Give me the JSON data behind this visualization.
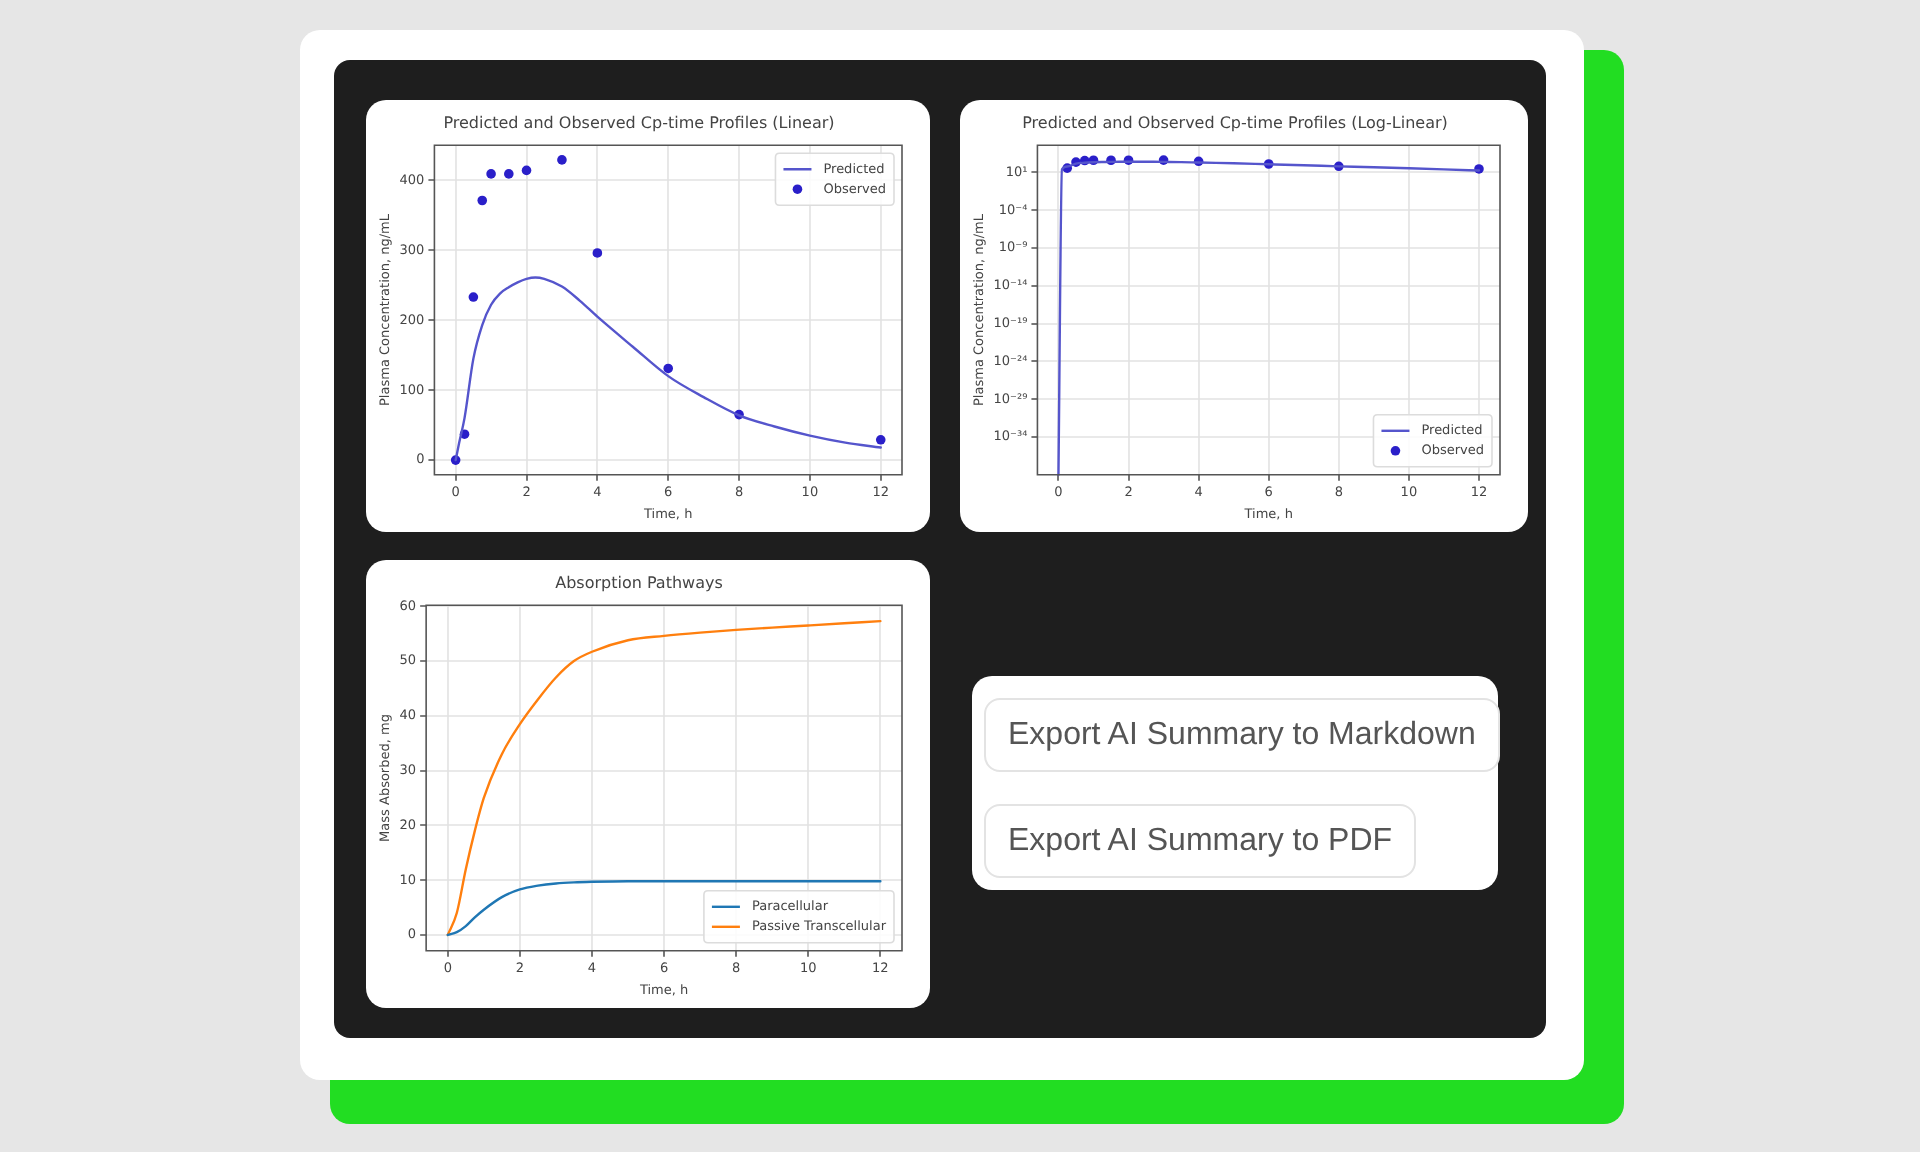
{
  "chart_data": [
    {
      "type": "line",
      "title": "Predicted and Observed Cp-time Profiles (Linear)",
      "xlabel": "Time, h",
      "ylabel": "Plasma Concentration, ng/mL",
      "series": [
        {
          "name": "Predicted",
          "type": "line",
          "color": "#5555cc",
          "x": [
            0,
            0.1,
            0.25,
            0.5,
            0.75,
            1,
            1.25,
            1.5,
            1.75,
            2,
            2.25,
            2.5,
            3,
            3.5,
            4,
            5,
            6,
            7,
            8,
            9,
            10,
            11,
            12
          ],
          "values": [
            0,
            25,
            60,
            145,
            193,
            222,
            238,
            247,
            254,
            259,
            261,
            259,
            248,
            228,
            205,
            162,
            120,
            90,
            64,
            48,
            35,
            25,
            18
          ]
        },
        {
          "name": "Observed",
          "type": "scatter",
          "color": "#2a1fc9",
          "marker": "circle",
          "x": [
            0,
            0.25,
            0.5,
            0.75,
            1,
            1.5,
            2,
            3,
            4,
            6,
            8,
            12
          ],
          "values": [
            0,
            37,
            233,
            371,
            409,
            409,
            414,
            429,
            296,
            131,
            65,
            29
          ]
        }
      ],
      "xlim": [
        -0.6,
        12.6
      ],
      "ylim": [
        -21,
        450
      ],
      "xticks": [
        0,
        2,
        4,
        6,
        8,
        10,
        12
      ],
      "yticks": [
        0,
        100,
        200,
        300,
        400
      ],
      "grid": true,
      "legend": "top right"
    },
    {
      "type": "line",
      "title": "Predicted and Observed Cp-time Profiles (Log-Linear)",
      "xlabel": "Time, h",
      "ylabel": "Plasma Concentration, ng/mL",
      "log": true,
      "series": [
        {
          "name": "Predicted",
          "type": "line",
          "color": "#5555cc",
          "x": [
            0,
            0.1,
            0.25,
            0.5,
            0.75,
            1,
            1.25,
            1.5,
            1.75,
            2,
            2.25,
            2.5,
            3,
            3.5,
            4,
            5,
            6,
            7,
            8,
            9,
            10,
            11,
            12
          ],
          "values": [
            1e-39,
            25,
            60,
            145,
            193,
            222,
            238,
            247,
            254,
            259,
            261,
            259,
            248,
            228,
            205,
            162,
            120,
            90,
            64,
            48,
            35,
            25,
            18
          ]
        },
        {
          "name": "Observed",
          "type": "scatter",
          "color": "#2a1fc9",
          "marker": "circle",
          "x": [
            0.25,
            0.5,
            0.75,
            1,
            1.5,
            2,
            3,
            4,
            6,
            8,
            12
          ],
          "values": [
            37,
            233,
            371,
            409,
            409,
            414,
            429,
            296,
            131,
            65,
            29
          ]
        }
      ],
      "xlim": [
        -0.6,
        12.6
      ],
      "ylim": [
        1e-39,
        40000
      ],
      "xticks": [
        0,
        2,
        4,
        6,
        8,
        10,
        12
      ],
      "yticks": [
        {
          "value": 1e-34,
          "label": "10⁻³⁴"
        },
        {
          "value": 1e-29,
          "label": "10⁻²⁹"
        },
        {
          "value": 1e-24,
          "label": "10⁻²⁴"
        },
        {
          "value": 1e-19,
          "label": "10⁻¹⁹"
        },
        {
          "value": 1e-14,
          "label": "10⁻¹⁴"
        },
        {
          "value": 1e-09,
          "label": "10⁻⁹"
        },
        {
          "value": 0.0001,
          "label": "10⁻⁴"
        },
        {
          "value": 10,
          "label": "10¹"
        }
      ],
      "grid": true,
      "legend": "bottom right"
    },
    {
      "type": "line",
      "title": "Absorption Pathways",
      "xlabel": "Time, h",
      "ylabel": "Mass Absorbed, mg",
      "x": [
        0,
        0.25,
        0.5,
        0.75,
        1,
        1.5,
        2,
        2.5,
        3,
        3.5,
        4,
        5,
        6,
        7,
        8,
        9,
        10,
        11,
        12
      ],
      "series": [
        {
          "name": "Paracellular",
          "color": "#1f77b4",
          "values": [
            0,
            0.5,
            1.6,
            3.2,
            4.6,
            6.9,
            8.3,
            9.0,
            9.4,
            9.6,
            9.7,
            9.8,
            9.8,
            9.8,
            9.8,
            9.8,
            9.8,
            9.8,
            9.8
          ]
        },
        {
          "name": "Passive Transcellular",
          "color": "#ff7f0e",
          "values": [
            0,
            4,
            12,
            19,
            25,
            33,
            38.5,
            43,
            47,
            50,
            51.7,
            53.8,
            54.6,
            55.2,
            55.7,
            56.1,
            56.5,
            56.9,
            57.3
          ]
        }
      ],
      "xlim": [
        -0.6,
        12.6
      ],
      "ylim": [
        -2.9,
        60.2
      ],
      "xticks": [
        0,
        2,
        4,
        6,
        8,
        10,
        12
      ],
      "yticks": [
        0,
        10,
        20,
        30,
        40,
        50,
        60
      ],
      "grid": true,
      "legend": "bottom right"
    },
    {
      "type": "other",
      "annotations": [
        "Export AI Summary to Markdown",
        "Export AI Summary to PDF"
      ]
    }
  ]
}
